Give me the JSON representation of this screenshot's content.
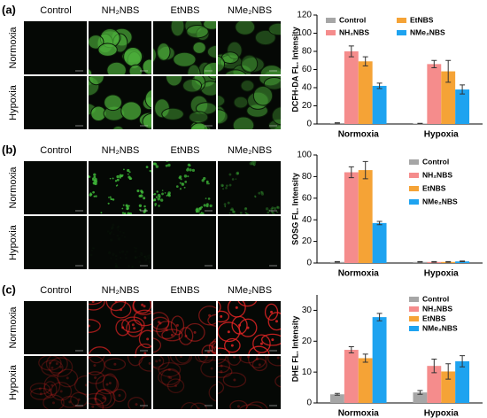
{
  "figure": {
    "panels": [
      "(a)",
      "(b)",
      "(c)"
    ],
    "columns": [
      "Control",
      "NH₂NBS",
      "EtNBS",
      "NMe₂NBS"
    ],
    "rows": [
      "Normoxia",
      "Hypoxia"
    ]
  },
  "chart_data": [
    {
      "type": "bar",
      "ylabel": "DCFH-DA FL. Intensity",
      "categories": [
        "Normoxia",
        "Hypoxia"
      ],
      "series": [
        {
          "name": "Control",
          "color": "#a6a6a6",
          "values": [
            1,
            0.5
          ],
          "errors": [
            0.3,
            0.2
          ]
        },
        {
          "name": "NH₂NBS",
          "color": "#f58c8c",
          "values": [
            80,
            66
          ],
          "errors": [
            6,
            4
          ]
        },
        {
          "name": "EtNBS",
          "color": "#f5a336",
          "values": [
            69,
            58
          ],
          "errors": [
            5,
            12
          ]
        },
        {
          "name": "NMe₂NBS",
          "color": "#1ea3f0",
          "values": [
            42,
            38
          ],
          "errors": [
            3,
            5
          ]
        }
      ],
      "ylim": [
        0,
        120
      ],
      "yticks": [
        0,
        20,
        40,
        60,
        80,
        100,
        120
      ]
    },
    {
      "type": "bar",
      "ylabel": "SOSG FL. Intensity",
      "categories": [
        "Normoxia",
        "Hypoxia"
      ],
      "series": [
        {
          "name": "Control",
          "color": "#a6a6a6",
          "values": [
            1,
            1
          ],
          "errors": [
            0.3,
            0.3
          ]
        },
        {
          "name": "NH₂NBS",
          "color": "#f58c8c",
          "values": [
            84,
            1
          ],
          "errors": [
            5,
            0.3
          ]
        },
        {
          "name": "EtNBS",
          "color": "#f5a336",
          "values": [
            86,
            1
          ],
          "errors": [
            8,
            0.3
          ]
        },
        {
          "name": "NMe₂NBS",
          "color": "#1ea3f0",
          "values": [
            37,
            1.5
          ],
          "errors": [
            1.5,
            0.3
          ]
        }
      ],
      "ylim": [
        0,
        100
      ],
      "yticks": [
        0,
        20,
        40,
        60,
        80,
        100
      ]
    },
    {
      "type": "bar",
      "ylabel": "DHE FL. Intensity",
      "categories": [
        "Normoxia",
        "Hypoxia"
      ],
      "series": [
        {
          "name": "Control",
          "color": "#a6a6a6",
          "values": [
            2.8,
            3.4
          ],
          "errors": [
            0.3,
            0.6
          ]
        },
        {
          "name": "NH₂NBS",
          "color": "#f58c8c",
          "values": [
            17.2,
            12
          ],
          "errors": [
            1,
            2.2
          ]
        },
        {
          "name": "EtNBS",
          "color": "#f5a336",
          "values": [
            14.5,
            10.2
          ],
          "errors": [
            1.3,
            2.5
          ]
        },
        {
          "name": "NMe₂NBS",
          "color": "#1ea3f0",
          "values": [
            27.8,
            13.5
          ],
          "errors": [
            1.2,
            1.8
          ]
        }
      ],
      "ylim": [
        0,
        35
      ],
      "yticks": [
        0,
        10,
        20,
        30
      ]
    }
  ]
}
